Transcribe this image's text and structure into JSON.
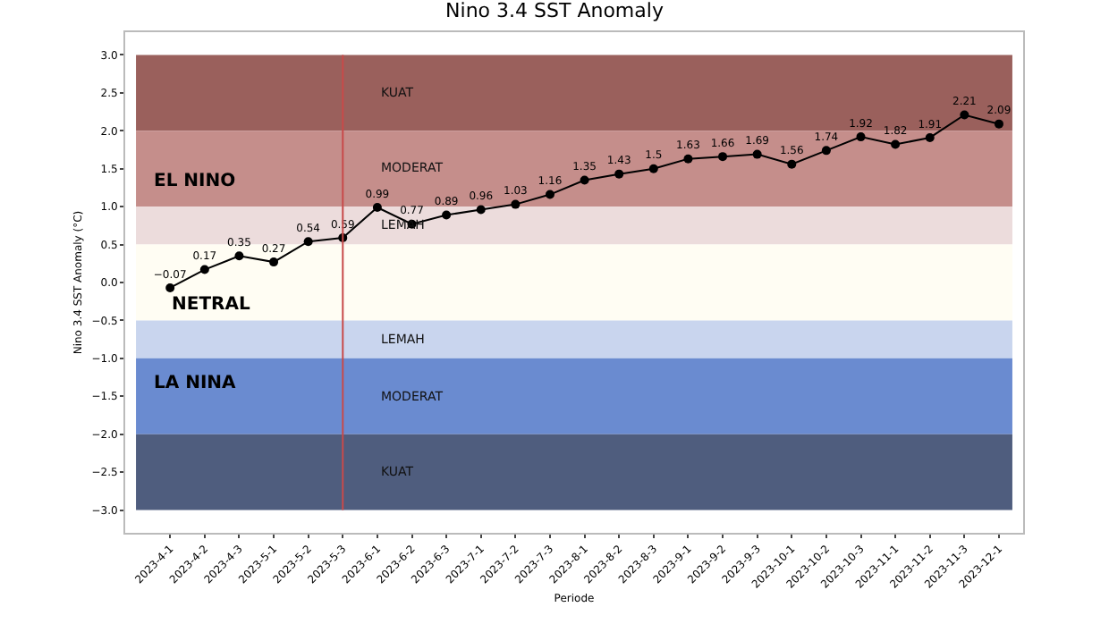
{
  "chart_data": {
    "type": "line",
    "title": "Nino 3.4 SST Anomaly",
    "xlabel": "Periode",
    "ylabel": "Nino 3.4 SST Anomaly (°C)",
    "categories": [
      "2023-4-1",
      "2023-4-2",
      "2023-4-3",
      "2023-5-1",
      "2023-5-2",
      "2023-5-3",
      "2023-6-1",
      "2023-6-2",
      "2023-6-3",
      "2023-7-1",
      "2023-7-2",
      "2023-7-3",
      "2023-8-1",
      "2023-8-2",
      "2023-8-3",
      "2023-9-1",
      "2023-9-2",
      "2023-9-3",
      "2023-10-1",
      "2023-10-2",
      "2023-10-3",
      "2023-11-1",
      "2023-11-2",
      "2023-11-3",
      "2023-12-1"
    ],
    "series": [
      {
        "color": "#000000",
        "values": [
          -0.07,
          0.17,
          0.35,
          0.27,
          0.54,
          0.59,
          0.99,
          0.77,
          0.89,
          0.96,
          1.03,
          1.16,
          1.35,
          1.43,
          1.5,
          1.63,
          1.66,
          1.69,
          1.56,
          1.74,
          1.92,
          1.82,
          1.91,
          2.21,
          2.09
        ]
      }
    ],
    "data_labels": true,
    "marker": "circle",
    "line_style": "solid",
    "grid": false,
    "legend": false,
    "ylim": [
      -3.3,
      3.3
    ],
    "yticks": [
      {
        "value": -3,
        "label": "−3.0"
      },
      {
        "value": -2.5,
        "label": "−2.5"
      },
      {
        "value": -2,
        "label": "−2.0"
      },
      {
        "value": -1.5,
        "label": "−1.5"
      },
      {
        "value": -1,
        "label": "−1.0"
      },
      {
        "value": -0.5,
        "label": "−0.5"
      },
      {
        "value": 0,
        "label": "0.0"
      },
      {
        "value": 0.5,
        "label": "0.5"
      },
      {
        "value": 1,
        "label": "1.0"
      },
      {
        "value": 1.5,
        "label": "1.5"
      },
      {
        "value": 2,
        "label": "2.0"
      },
      {
        "value": 2.5,
        "label": "2.5"
      },
      {
        "value": 3,
        "label": "3.0"
      }
    ],
    "bands": [
      {
        "axis": "y",
        "from": 2,
        "to": 3,
        "label": "KUAT",
        "color": "#9a605c"
      },
      {
        "axis": "y",
        "from": 1,
        "to": 2,
        "label": "MODERAT",
        "color": "#c58e8b"
      },
      {
        "axis": "y",
        "from": 0.5,
        "to": 1,
        "label": "LEMAH",
        "color": "#ecdcdc"
      },
      {
        "axis": "y",
        "from": -0.5,
        "to": 0.5,
        "color": "#fffdf3"
      },
      {
        "axis": "y",
        "from": -1,
        "to": -0.5,
        "label": "LEMAH",
        "color": "#c9d5ee"
      },
      {
        "axis": "y",
        "from": -2,
        "to": -1,
        "label": "MODERAT",
        "color": "#6a8bd0"
      },
      {
        "axis": "y",
        "from": -3,
        "to": -2,
        "label": "KUAT",
        "color": "#4f5d7e"
      }
    ],
    "ref_lines": [
      {
        "axis": "x",
        "value": "2023-5-3",
        "color": "#c84a4a"
      }
    ],
    "annotations": [
      "EL NINO",
      "NETRAL",
      "LA NINA"
    ]
  }
}
